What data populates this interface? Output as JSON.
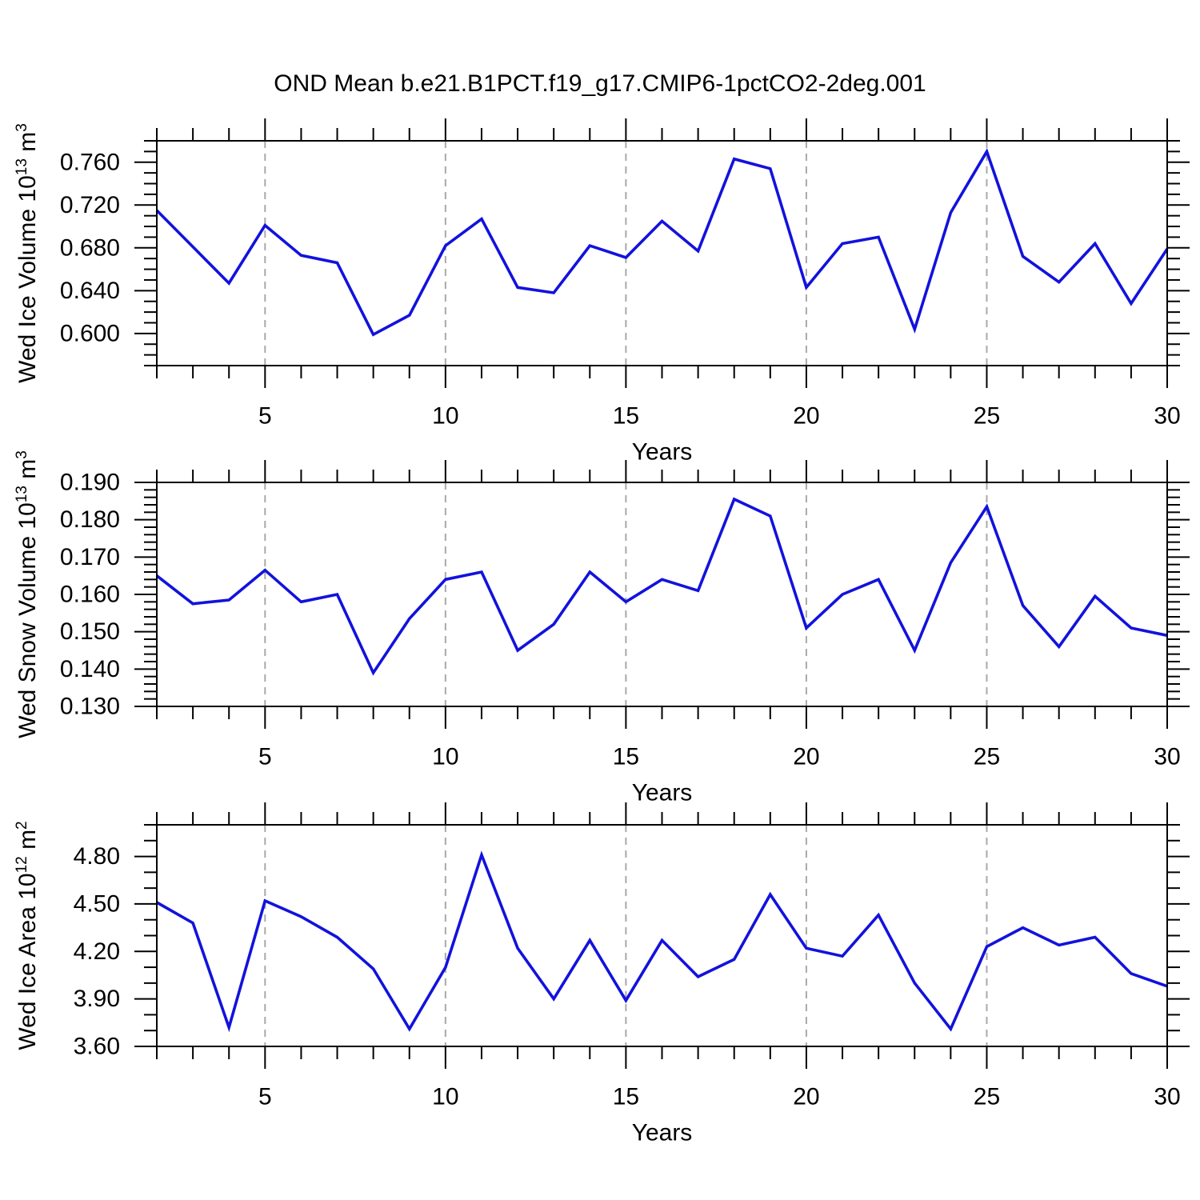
{
  "title": "OND Mean b.e21.B1PCT.f19_g17.CMIP6-1pctCO2-2deg.001",
  "colors": {
    "line": "#1212dd",
    "grid": "#a9a9a9",
    "frame": "#000000",
    "tick": "#000000",
    "text": "#000000",
    "background": "#ffffff"
  },
  "x_axis": {
    "label": "Years",
    "xlim": [
      2,
      30
    ],
    "major_ticks": [
      5,
      10,
      15,
      20,
      25,
      30
    ],
    "minor_step": 1,
    "gridline_ticks": [
      5,
      10,
      15,
      20,
      25
    ],
    "years": [
      2,
      3,
      4,
      5,
      6,
      7,
      8,
      9,
      10,
      11,
      12,
      13,
      14,
      15,
      16,
      17,
      18,
      19,
      20,
      21,
      22,
      23,
      24,
      25,
      26,
      27,
      28,
      29,
      30
    ]
  },
  "chart_data": [
    {
      "type": "line",
      "name": "wed-ice-volume",
      "ylabel_plain": "Wed Ice Volume 10^13 m^3",
      "ylabel_parts": [
        {
          "t": "Wed Ice Volume 10"
        },
        {
          "t": "13",
          "sup": true
        },
        {
          "t": " m"
        },
        {
          "t": "3",
          "sup": true
        }
      ],
      "ylim": [
        0.57,
        0.78
      ],
      "ytick_values": [
        0.6,
        0.64,
        0.68,
        0.72,
        0.76
      ],
      "ytick_labels": [
        "0.600",
        "0.640",
        "0.680",
        "0.720",
        "0.760"
      ],
      "y_minor_step": 0.01,
      "xlabel": "Years",
      "values": [
        0.715,
        0.681,
        0.647,
        0.701,
        0.673,
        0.666,
        0.599,
        0.617,
        0.682,
        0.707,
        0.643,
        0.638,
        0.682,
        0.671,
        0.705,
        0.677,
        0.763,
        0.754,
        0.643,
        0.684,
        0.69,
        0.604,
        0.713,
        0.77,
        0.672,
        0.648,
        0.684,
        0.628,
        0.679
      ]
    },
    {
      "type": "line",
      "name": "wed-snow-volume",
      "ylabel_plain": "Wed Snow Volume 10^13 m^3",
      "ylabel_parts": [
        {
          "t": "Wed Snow Volume 10"
        },
        {
          "t": "13",
          "sup": true
        },
        {
          "t": " m"
        },
        {
          "t": "3",
          "sup": true
        }
      ],
      "ylim": [
        0.13,
        0.19
      ],
      "ytick_values": [
        0.13,
        0.14,
        0.15,
        0.16,
        0.17,
        0.18,
        0.19
      ],
      "ytick_labels": [
        "0.130",
        "0.140",
        "0.150",
        "0.160",
        "0.170",
        "0.180",
        "0.190"
      ],
      "y_minor_step": 0.002,
      "xlabel": "Years",
      "values": [
        0.165,
        0.1575,
        0.1585,
        0.1665,
        0.158,
        0.16,
        0.139,
        0.1535,
        0.164,
        0.166,
        0.145,
        0.152,
        0.166,
        0.158,
        0.164,
        0.161,
        0.1855,
        0.181,
        0.151,
        0.16,
        0.164,
        0.145,
        0.1685,
        0.1835,
        0.157,
        0.146,
        0.1595,
        0.151,
        0.149
      ]
    },
    {
      "type": "line",
      "name": "wed-ice-area",
      "ylabel_plain": "Wed Ice Area 10^12 m^2",
      "ylabel_parts": [
        {
          "t": "Wed Ice Area 10"
        },
        {
          "t": "12",
          "sup": true
        },
        {
          "t": " m"
        },
        {
          "t": "2",
          "sup": true
        }
      ],
      "ylim": [
        3.6,
        5.0
      ],
      "ytick_values": [
        3.6,
        3.9,
        4.2,
        4.5,
        4.8
      ],
      "ytick_labels": [
        "3.60",
        "3.90",
        "4.20",
        "4.50",
        "4.80"
      ],
      "y_minor_step": 0.1,
      "xlabel": "Years",
      "values": [
        4.51,
        4.38,
        3.72,
        4.52,
        4.42,
        4.29,
        4.09,
        3.71,
        4.1,
        4.81,
        4.22,
        3.9,
        4.27,
        3.89,
        4.27,
        4.04,
        4.15,
        4.56,
        4.22,
        4.17,
        4.43,
        4.0,
        3.71,
        4.23,
        4.35,
        4.24,
        4.29,
        4.06,
        3.98
      ]
    }
  ]
}
